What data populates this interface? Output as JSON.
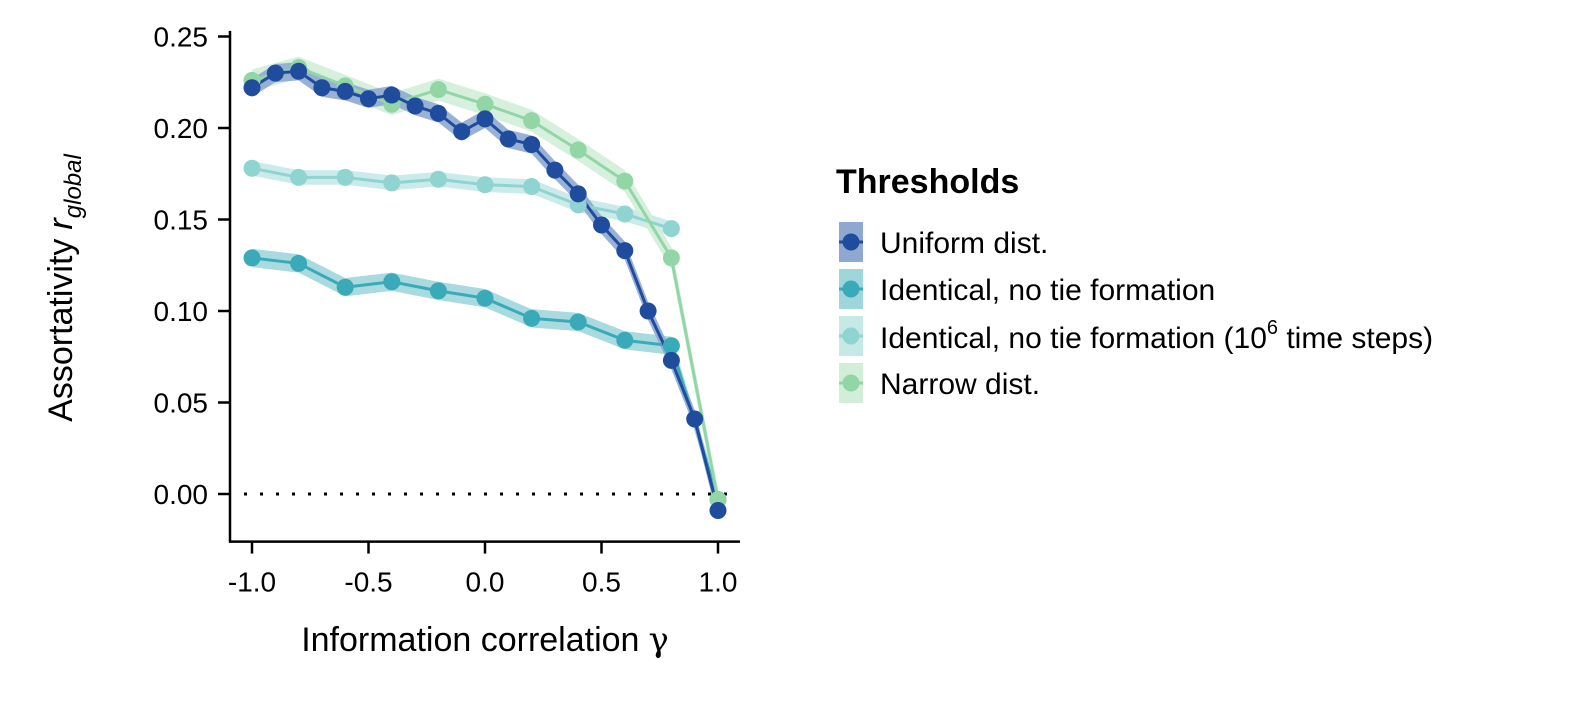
{
  "chart_data": {
    "type": "line",
    "xlabel": "Information correlation",
    "xlabel_symbol": "γ",
    "ylabel": "Assortativity",
    "ylabel_symbol": "r",
    "ylabel_subscript": "global",
    "xlim": [
      -1.1,
      1.1
    ],
    "ylim": [
      -0.026,
      0.252
    ],
    "x_ticks": [
      -1.0,
      -0.5,
      0.0,
      0.5,
      1.0
    ],
    "x_tick_labels": [
      "-1.0",
      "-0.5",
      "0.0",
      "0.5",
      "1.0"
    ],
    "y_ticks": [
      0.0,
      0.05,
      0.1,
      0.15,
      0.2,
      0.25
    ],
    "y_tick_labels": [
      "0.00",
      "0.05",
      "0.10",
      "0.15",
      "0.20",
      "0.25"
    ],
    "reference_line": {
      "y": 0.0,
      "style": "dotted"
    },
    "grid": false,
    "legend": {
      "title": "Thresholds",
      "placement": "right",
      "items": [
        {
          "key": "uniform",
          "label": "Uniform dist."
        },
        {
          "key": "identical",
          "label": "Identical, no tie formation"
        },
        {
          "key": "identical_long",
          "label_prefix": "Identical, no tie formation (10",
          "label_sup": "6",
          "label_suffix": " time steps)"
        },
        {
          "key": "narrow",
          "label": "Narrow dist."
        }
      ]
    },
    "series": [
      {
        "key": "identical_long",
        "color": "#8fd4d0",
        "band_color": "#c4e9e7",
        "band_halfwidth": 0.004,
        "x": [
          -1.0,
          -0.8,
          -0.6,
          -0.4,
          -0.2,
          0.0,
          0.2,
          0.4,
          0.6,
          0.8
        ],
        "y": [
          0.178,
          0.173,
          0.173,
          0.17,
          0.172,
          0.169,
          0.168,
          0.158,
          0.153,
          0.145
        ]
      },
      {
        "key": "identical",
        "color": "#3aaab9",
        "band_color": "#9fd6dc",
        "band_halfwidth": 0.005,
        "x": [
          -1.0,
          -0.8,
          -0.6,
          -0.4,
          -0.2,
          0.0,
          0.2,
          0.4,
          0.6,
          0.8,
          1.0
        ],
        "y": [
          0.129,
          0.126,
          0.113,
          0.116,
          0.111,
          0.107,
          0.096,
          0.094,
          0.084,
          0.081,
          -0.003
        ]
      },
      {
        "key": "narrow",
        "color": "#92d6a6",
        "band_color": "#d2eed9",
        "band_halfwidth": 0.006,
        "x": [
          -1.0,
          -0.8,
          -0.6,
          -0.4,
          -0.2,
          0.0,
          0.2,
          0.4,
          0.6,
          0.8,
          1.0
        ],
        "y": [
          0.226,
          0.233,
          0.223,
          0.213,
          0.221,
          0.213,
          0.204,
          0.188,
          0.171,
          0.129,
          -0.003
        ]
      },
      {
        "key": "uniform",
        "color": "#1f4c9c",
        "band_color": "#8fa8d2",
        "band_halfwidth": 0.005,
        "x": [
          -1.0,
          -0.9,
          -0.8,
          -0.7,
          -0.6,
          -0.5,
          -0.4,
          -0.3,
          -0.2,
          -0.1,
          0.0,
          0.1,
          0.2,
          0.3,
          0.4,
          0.5,
          0.6,
          0.7,
          0.8,
          0.9,
          1.0
        ],
        "y": [
          0.222,
          0.23,
          0.231,
          0.222,
          0.22,
          0.216,
          0.218,
          0.212,
          0.208,
          0.198,
          0.205,
          0.194,
          0.191,
          0.177,
          0.164,
          0.147,
          0.133,
          0.1,
          0.073,
          0.041,
          -0.009
        ]
      }
    ]
  }
}
